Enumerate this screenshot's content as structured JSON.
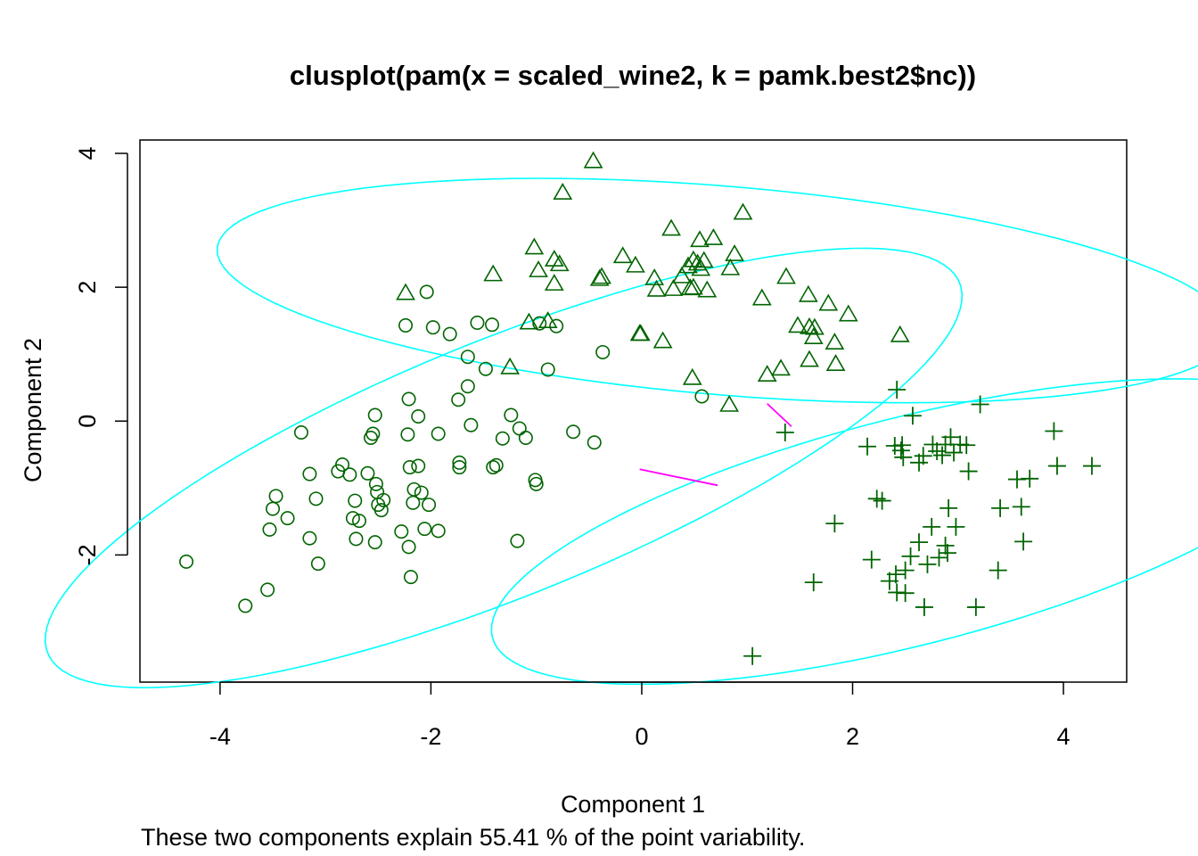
{
  "chart_data": {
    "type": "scatter",
    "title": "clusplot(pam(x = scaled_wine2, k = pamk.best2$nc))",
    "xlabel": "Component 1",
    "ylabel": "Component 2",
    "subtitle": "These two components explain 55.41 % of the point variability.",
    "xlim": [
      -4.76,
      4.6
    ],
    "ylim": [
      -3.9,
      4.2
    ],
    "xticks": [
      -4,
      -2,
      0,
      2,
      4
    ],
    "yticks": [
      -2,
      0,
      2,
      4
    ],
    "xtick_labels": [
      "-4",
      "-2",
      "0",
      "2",
      "4"
    ],
    "ytick_labels": [
      "-2",
      "0",
      "2",
      "4"
    ],
    "grid": false,
    "legend": "none",
    "colors": {
      "points": "#006400",
      "ellipse": "#00FFFF",
      "links": "#FF00FF",
      "axis": "#000000"
    },
    "ellipses": [
      {
        "cluster": 1,
        "cx": -1.31,
        "cy": -0.7,
        "rx": 5.17,
        "ry": 1.72,
        "angle_deg": 35
      },
      {
        "cluster": 2,
        "cx": 0.78,
        "cy": 1.95,
        "rx": 4.85,
        "ry": 1.55,
        "angle_deg": -8
      },
      {
        "cluster": 3,
        "cx": 2.53,
        "cy": -1.65,
        "rx": 4.27,
        "ry": 1.62,
        "angle_deg": 24
      }
    ],
    "links": [
      {
        "from": [
          -0.02,
          -0.72
        ],
        "to": [
          0.72,
          -0.96
        ]
      },
      {
        "from": [
          1.19,
          0.26
        ],
        "to": [
          1.42,
          -0.08
        ]
      }
    ],
    "series": [
      {
        "cluster": 1,
        "marker": "circle",
        "points": [
          [
            -4.32,
            -2.1
          ],
          [
            -3.76,
            -2.76
          ],
          [
            -3.55,
            -2.52
          ],
          [
            -3.47,
            -1.12
          ],
          [
            -3.5,
            -1.31
          ],
          [
            -3.53,
            -1.62
          ],
          [
            -3.36,
            -1.45
          ],
          [
            -3.23,
            -0.17
          ],
          [
            -3.15,
            -0.79
          ],
          [
            -3.15,
            -1.75
          ],
          [
            -3.07,
            -2.13
          ],
          [
            -3.09,
            -1.16
          ],
          [
            -2.88,
            -0.75
          ],
          [
            -2.84,
            -0.65
          ],
          [
            -2.77,
            -0.8
          ],
          [
            -2.72,
            -1.19
          ],
          [
            -2.74,
            -1.45
          ],
          [
            -2.71,
            -1.76
          ],
          [
            -2.68,
            -1.49
          ],
          [
            -2.6,
            -0.78
          ],
          [
            -2.57,
            -0.25
          ],
          [
            -2.55,
            -0.19
          ],
          [
            -2.53,
            0.09
          ],
          [
            -2.52,
            -0.94
          ],
          [
            -2.51,
            -1.06
          ],
          [
            -2.53,
            -1.81
          ],
          [
            -2.5,
            -1.25
          ],
          [
            -2.47,
            -1.33
          ],
          [
            -2.45,
            -1.18
          ],
          [
            -2.28,
            -1.65
          ],
          [
            -2.24,
            1.43
          ],
          [
            -2.22,
            -0.2
          ],
          [
            -2.21,
            0.33
          ],
          [
            -2.2,
            -0.69
          ],
          [
            -2.21,
            -1.88
          ],
          [
            -2.19,
            -2.33
          ],
          [
            -2.17,
            -1.22
          ],
          [
            -2.16,
            -1.02
          ],
          [
            -2.12,
            -0.67
          ],
          [
            -2.12,
            0.07
          ],
          [
            -2.09,
            -1.07
          ],
          [
            -2.06,
            -1.61
          ],
          [
            -2.04,
            1.93
          ],
          [
            -2.02,
            -1.25
          ],
          [
            -1.98,
            1.4
          ],
          [
            -1.93,
            -0.19
          ],
          [
            -1.93,
            -1.64
          ],
          [
            -1.82,
            1.3
          ],
          [
            -1.73,
            -0.69
          ],
          [
            -1.73,
            -0.62
          ],
          [
            -1.74,
            0.32
          ],
          [
            -1.65,
            0.52
          ],
          [
            -1.65,
            0.96
          ],
          [
            -1.62,
            -0.06
          ],
          [
            -1.56,
            1.47
          ],
          [
            -1.48,
            0.78
          ],
          [
            -1.42,
            1.44
          ],
          [
            -1.41,
            -0.69
          ],
          [
            -1.38,
            -0.66
          ],
          [
            -1.32,
            -0.26
          ],
          [
            -1.24,
            0.09
          ],
          [
            -1.18,
            -1.79
          ],
          [
            -1.16,
            -0.11
          ],
          [
            -1.1,
            -0.25
          ],
          [
            -1.01,
            -0.88
          ],
          [
            -1.0,
            -0.94
          ],
          [
            -0.97,
            1.46
          ],
          [
            -0.89,
            0.77
          ],
          [
            -0.81,
            1.42
          ],
          [
            -0.65,
            -0.16
          ],
          [
            -0.45,
            -0.32
          ],
          [
            -0.37,
            1.03
          ],
          [
            0.57,
            0.37
          ]
        ]
      },
      {
        "cluster": 2,
        "marker": "triangle",
        "points": [
          [
            -0.46,
            3.89
          ],
          [
            -0.75,
            3.42
          ],
          [
            -1.02,
            2.6
          ],
          [
            -2.24,
            1.92
          ],
          [
            -1.41,
            2.2
          ],
          [
            -0.98,
            2.26
          ],
          [
            -0.83,
            2.42
          ],
          [
            -0.78,
            2.35
          ],
          [
            -0.83,
            2.06
          ],
          [
            -0.89,
            1.5
          ],
          [
            -1.07,
            1.48
          ],
          [
            -1.25,
            0.81
          ],
          [
            -0.38,
            2.16
          ],
          [
            -0.4,
            2.13
          ],
          [
            -0.18,
            2.47
          ],
          [
            -0.06,
            2.33
          ],
          [
            -0.02,
            1.31
          ],
          [
            -0.01,
            1.31
          ],
          [
            0.12,
            2.14
          ],
          [
            0.14,
            1.97
          ],
          [
            0.2,
            1.2
          ],
          [
            0.28,
            2.88
          ],
          [
            0.3,
            1.98
          ],
          [
            0.38,
            2.17
          ],
          [
            0.44,
            2.32
          ],
          [
            0.46,
            1.99
          ],
          [
            0.49,
            2.41
          ],
          [
            0.49,
            2.0
          ],
          [
            0.53,
            2.36
          ],
          [
            0.55,
            2.71
          ],
          [
            0.56,
            2.28
          ],
          [
            0.59,
            2.4
          ],
          [
            0.62,
            1.96
          ],
          [
            0.68,
            2.74
          ],
          [
            0.84,
            2.29
          ],
          [
            0.88,
            2.5
          ],
          [
            0.96,
            3.12
          ],
          [
            1.14,
            1.84
          ],
          [
            1.19,
            0.7
          ],
          [
            1.32,
            0.79
          ],
          [
            1.37,
            2.16
          ],
          [
            1.48,
            1.43
          ],
          [
            1.58,
            1.89
          ],
          [
            1.59,
            1.41
          ],
          [
            1.63,
            1.26
          ],
          [
            1.64,
            1.4
          ],
          [
            1.59,
            0.92
          ],
          [
            1.77,
            1.76
          ],
          [
            1.83,
            1.18
          ],
          [
            1.84,
            0.86
          ],
          [
            1.96,
            1.6
          ],
          [
            2.45,
            1.29
          ],
          [
            0.48,
            0.65
          ],
          [
            0.83,
            0.25
          ]
        ]
      },
      {
        "cluster": 3,
        "marker": "plus",
        "points": [
          [
            1.05,
            -3.51
          ],
          [
            1.36,
            -0.17
          ],
          [
            1.63,
            -2.41
          ],
          [
            1.83,
            -1.53
          ],
          [
            2.14,
            -0.38
          ],
          [
            2.18,
            -2.07
          ],
          [
            2.23,
            -1.16
          ],
          [
            2.28,
            -1.19
          ],
          [
            2.35,
            -2.39
          ],
          [
            2.4,
            -0.37
          ],
          [
            2.42,
            0.47
          ],
          [
            2.41,
            -2.29
          ],
          [
            2.42,
            -2.56
          ],
          [
            2.46,
            -0.44
          ],
          [
            2.47,
            -0.36
          ],
          [
            2.48,
            -0.54
          ],
          [
            2.5,
            -2.23
          ],
          [
            2.5,
            -2.57
          ],
          [
            2.55,
            -2.02
          ],
          [
            2.57,
            0.08
          ],
          [
            2.63,
            -1.81
          ],
          [
            2.63,
            -0.62
          ],
          [
            2.67,
            -0.52
          ],
          [
            2.68,
            -2.78
          ],
          [
            2.71,
            -2.14
          ],
          [
            2.75,
            -1.58
          ],
          [
            2.76,
            -0.35
          ],
          [
            2.8,
            -0.45
          ],
          [
            2.82,
            -2.04
          ],
          [
            2.85,
            -0.51
          ],
          [
            2.88,
            -0.35
          ],
          [
            2.88,
            -1.86
          ],
          [
            2.9,
            -1.97
          ],
          [
            2.91,
            -1.3
          ],
          [
            2.93,
            -0.24
          ],
          [
            2.96,
            -0.47
          ],
          [
            2.98,
            -1.58
          ],
          [
            3.02,
            -0.35
          ],
          [
            3.08,
            -0.36
          ],
          [
            3.1,
            -0.75
          ],
          [
            3.17,
            -2.78
          ],
          [
            3.21,
            0.25
          ],
          [
            3.38,
            -2.23
          ],
          [
            3.4,
            -1.3
          ],
          [
            3.56,
            -0.87
          ],
          [
            3.6,
            -1.28
          ],
          [
            3.62,
            -1.8
          ],
          [
            3.68,
            -0.86
          ],
          [
            3.91,
            -0.15
          ],
          [
            3.94,
            -0.67
          ],
          [
            4.27,
            -0.67
          ]
        ]
      }
    ]
  }
}
